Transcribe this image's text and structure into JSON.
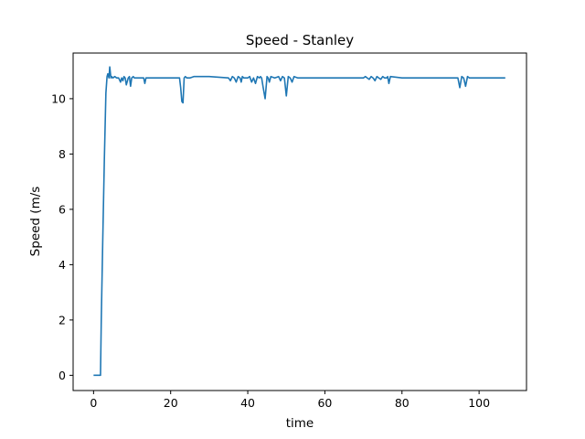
{
  "chart_data": {
    "type": "line",
    "title": "Speed - Stanley",
    "xlabel": "time",
    "ylabel": "Speed (m/s",
    "xlim": [
      -5.3,
      112.3
    ],
    "ylim": [
      -0.55,
      11.65
    ],
    "xticks": [
      0,
      20,
      40,
      60,
      80,
      100
    ],
    "yticks": [
      0,
      2,
      4,
      6,
      8,
      10
    ],
    "grid": false,
    "legend": "none",
    "color": "#1f77b4",
    "series": [
      {
        "x": [
          0,
          1.8,
          2,
          2.4,
          2.8,
          3.2,
          3.5,
          3.7,
          4.0,
          4.2,
          4.5,
          4.7,
          5.0,
          5.5,
          6.0,
          6.5,
          7.0,
          7.3,
          7.6,
          7.9,
          8.2,
          8.5,
          9.0,
          9.3,
          9.6,
          9.9,
          10.3,
          10.6,
          10.9,
          11.3,
          12,
          13,
          13.3,
          13.6,
          14,
          16,
          18,
          20,
          21.5,
          22.3,
          22.6,
          22.9,
          23.2,
          23.5,
          23.8,
          24.2,
          25,
          26,
          30,
          35,
          35.5,
          36,
          36.5,
          37,
          37.5,
          38,
          38.3,
          38.6,
          39,
          39.5,
          40,
          40.5,
          41,
          41.5,
          42,
          42.5,
          43,
          43.3,
          43.6,
          44,
          44.5,
          45,
          45.3,
          45.6,
          46,
          47,
          48,
          48.5,
          49,
          49.5,
          50,
          50.5,
          51,
          51.5,
          52,
          53,
          60,
          65,
          70,
          70.5,
          71,
          71.5,
          72,
          72.5,
          73,
          73.5,
          74,
          74.5,
          75,
          75.5,
          76,
          76.3,
          76.6,
          77,
          80,
          90,
          94,
          94.5,
          95,
          95.5,
          96,
          96.5,
          97,
          97.5,
          98,
          100,
          106.8
        ],
        "y": [
          0.0,
          0.0,
          2.0,
          5.0,
          7.8,
          10.2,
          10.8,
          10.9,
          10.75,
          11.15,
          10.75,
          10.8,
          10.75,
          10.8,
          10.75,
          10.75,
          10.6,
          10.75,
          10.65,
          10.8,
          10.75,
          10.5,
          10.75,
          10.8,
          10.45,
          10.75,
          10.8,
          10.75,
          10.75,
          10.75,
          10.75,
          10.75,
          10.55,
          10.75,
          10.75,
          10.75,
          10.75,
          10.75,
          10.75,
          10.75,
          10.4,
          9.9,
          9.85,
          10.75,
          10.8,
          10.75,
          10.75,
          10.8,
          10.8,
          10.75,
          10.65,
          10.8,
          10.75,
          10.6,
          10.8,
          10.75,
          10.6,
          10.8,
          10.75,
          10.75,
          10.75,
          10.8,
          10.6,
          10.75,
          10.55,
          10.8,
          10.75,
          10.8,
          10.75,
          10.4,
          10.0,
          10.8,
          10.75,
          10.6,
          10.8,
          10.75,
          10.8,
          10.65,
          10.8,
          10.75,
          10.1,
          10.8,
          10.75,
          10.6,
          10.8,
          10.75,
          10.75,
          10.75,
          10.75,
          10.8,
          10.75,
          10.7,
          10.8,
          10.75,
          10.65,
          10.8,
          10.75,
          10.7,
          10.8,
          10.75,
          10.75,
          10.8,
          10.55,
          10.8,
          10.75,
          10.75,
          10.75,
          10.75,
          10.4,
          10.8,
          10.75,
          10.45,
          10.8,
          10.75,
          10.75,
          10.75,
          10.75
        ]
      }
    ]
  }
}
